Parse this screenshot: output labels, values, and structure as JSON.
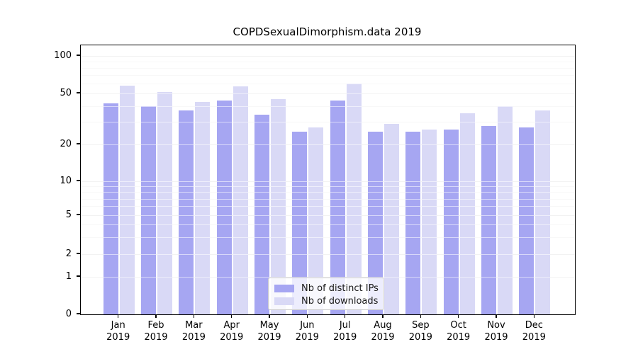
{
  "title": "COPDSexualDimorphism.data 2019",
  "chart_data": {
    "type": "bar",
    "title": "COPDSexualDimorphism.data 2019",
    "categories": [
      "Jan 2019",
      "Feb 2019",
      "Mar 2019",
      "Apr 2019",
      "May 2019",
      "Jun 2019",
      "Jul 2019",
      "Aug 2019",
      "Sep 2019",
      "Oct 2019",
      "Nov 2019",
      "Dec 2019"
    ],
    "month_labels": [
      "Jan",
      "Feb",
      "Mar",
      "Apr",
      "May",
      "Jun",
      "Jul",
      "Aug",
      "Sep",
      "Oct",
      "Nov",
      "Dec"
    ],
    "year_label": "2019",
    "series": [
      {
        "name": "Nb of distinct IPs",
        "color": "#a6a6f2",
        "values": [
          42,
          40,
          37,
          44,
          34,
          25,
          44,
          25,
          25,
          26,
          28,
          27
        ]
      },
      {
        "name": "Nb of downloads",
        "color": "#d9d9f6",
        "values": [
          58,
          51,
          43,
          57,
          45,
          27,
          60,
          29,
          26,
          35,
          40,
          37
        ]
      }
    ],
    "yscale": "symlog",
    "ytick_values": [
      0,
      1,
      2,
      5,
      10,
      20,
      50,
      100
    ],
    "ytick_labels": [
      "0",
      "1",
      "2",
      "5",
      "10",
      "20",
      "50",
      "100"
    ],
    "minor_grid_values": [
      3,
      4,
      6,
      7,
      8,
      9,
      30,
      40,
      60,
      70,
      80,
      90
    ],
    "ylim": [
      0,
      130
    ],
    "xlabel": "",
    "ylabel": "",
    "grid": true,
    "legend_position": "lower center inside plot",
    "colors": {
      "bar_dark": "#a6a6f2",
      "bar_light": "#d9d9f6",
      "grid_major": "#e2e2e2",
      "grid_minor": "#f0f0f0",
      "axis": "#000000",
      "legend_border": "#cccccc"
    }
  }
}
